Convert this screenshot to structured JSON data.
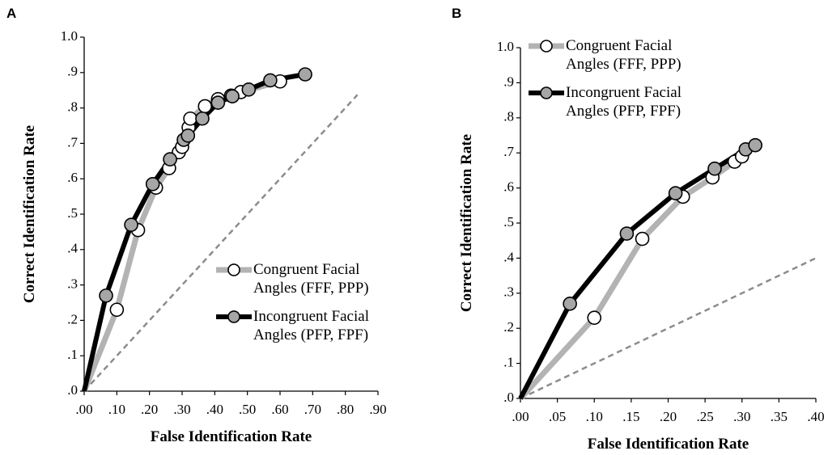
{
  "chart_data": [
    {
      "type": "line",
      "panel_label": "A",
      "x_label": "False Identification Rate",
      "y_label": "Correct Identification Rate",
      "xlim": [
        0,
        0.9
      ],
      "ylim": [
        0,
        1
      ],
      "xticks": [
        {
          "value": 0,
          "label": ".00"
        },
        {
          "value": 0.1,
          "label": ".10"
        },
        {
          "value": 0.2,
          "label": ".20"
        },
        {
          "value": 0.3,
          "label": ".30"
        },
        {
          "value": 0.4,
          "label": ".40"
        },
        {
          "value": 0.5,
          "label": ".50"
        },
        {
          "value": 0.6,
          "label": ".60"
        },
        {
          "value": 0.7,
          "label": ".70"
        },
        {
          "value": 0.8,
          "label": ".80"
        },
        {
          "value": 0.9,
          "label": ".90"
        }
      ],
      "yticks": [
        {
          "value": 0,
          "label": ".0"
        },
        {
          "value": 0.1,
          "label": ".1"
        },
        {
          "value": 0.2,
          "label": ".2"
        },
        {
          "value": 0.3,
          "label": ".3"
        },
        {
          "value": 0.4,
          "label": ".4"
        },
        {
          "value": 0.5,
          "label": ".5"
        },
        {
          "value": 0.6,
          "label": ".6"
        },
        {
          "value": 0.7,
          "label": ".7"
        },
        {
          "value": 0.8,
          "label": ".8"
        },
        {
          "value": 0.9,
          "label": ".9"
        },
        {
          "value": 1,
          "label": "1.0"
        }
      ],
      "legend": "center right",
      "series": [
        {
          "name": "Congruent Facial Angles (FFF, PPP)",
          "color": "#b3b3b3",
          "marker_color": "#ffffff",
          "x": [
            0,
            0.1,
            0.165,
            0.22,
            0.26,
            0.29,
            0.3,
            0.32,
            0.325,
            0.37,
            0.41,
            0.45,
            0.48,
            0.6
          ],
          "values": [
            0,
            0.23,
            0.455,
            0.575,
            0.63,
            0.675,
            0.69,
            0.745,
            0.77,
            0.805,
            0.825,
            0.835,
            0.845,
            0.875
          ]
        },
        {
          "name": "Incongruent Facial Angles (PFP, FPF)",
          "color": "#000000",
          "marker_color": "#a6a6a6",
          "x": [
            0,
            0.067,
            0.144,
            0.21,
            0.263,
            0.305,
            0.318,
            0.362,
            0.41,
            0.454,
            0.504,
            0.57,
            0.677
          ],
          "values": [
            0,
            0.27,
            0.47,
            0.585,
            0.655,
            0.71,
            0.722,
            0.77,
            0.815,
            0.833,
            0.852,
            0.878,
            0.895
          ]
        }
      ]
    },
    {
      "type": "line",
      "panel_label": "B",
      "x_label": "False Identification Rate",
      "y_label": "Correct Identification Rate",
      "xlim": [
        0,
        0.4
      ],
      "ylim": [
        0,
        1
      ],
      "xticks": [
        {
          "value": 0,
          "label": ".00"
        },
        {
          "value": 0.05,
          "label": ".05"
        },
        {
          "value": 0.1,
          "label": ".10"
        },
        {
          "value": 0.15,
          "label": ".15"
        },
        {
          "value": 0.2,
          "label": ".20"
        },
        {
          "value": 0.25,
          "label": ".25"
        },
        {
          "value": 0.3,
          "label": ".30"
        },
        {
          "value": 0.35,
          "label": ".35"
        },
        {
          "value": 0.4,
          "label": ".40"
        }
      ],
      "yticks": [
        {
          "value": 0,
          "label": ".0"
        },
        {
          "value": 0.1,
          "label": ".1"
        },
        {
          "value": 0.2,
          "label": ".2"
        },
        {
          "value": 0.3,
          "label": ".3"
        },
        {
          "value": 0.4,
          "label": ".4"
        },
        {
          "value": 0.5,
          "label": ".5"
        },
        {
          "value": 0.6,
          "label": ".6"
        },
        {
          "value": 0.7,
          "label": ".7"
        },
        {
          "value": 0.8,
          "label": ".8"
        },
        {
          "value": 0.9,
          "label": ".9"
        },
        {
          "value": 1,
          "label": "1.0"
        }
      ],
      "legend": "upper left",
      "series": [
        {
          "name": "Congruent Facial Angles (FFF, PPP)",
          "color": "#b3b3b3",
          "marker_color": "#ffffff",
          "x": [
            0,
            0.1,
            0.165,
            0.22,
            0.26,
            0.29,
            0.3
          ],
          "values": [
            0,
            0.23,
            0.455,
            0.575,
            0.63,
            0.675,
            0.69
          ]
        },
        {
          "name": "Incongruent Facial Angles (PFP, FPF)",
          "color": "#000000",
          "marker_color": "#a6a6a6",
          "x": [
            0,
            0.067,
            0.144,
            0.21,
            0.263,
            0.305,
            0.318
          ],
          "values": [
            0,
            0.27,
            0.47,
            0.585,
            0.655,
            0.71,
            0.722
          ]
        }
      ]
    }
  ]
}
